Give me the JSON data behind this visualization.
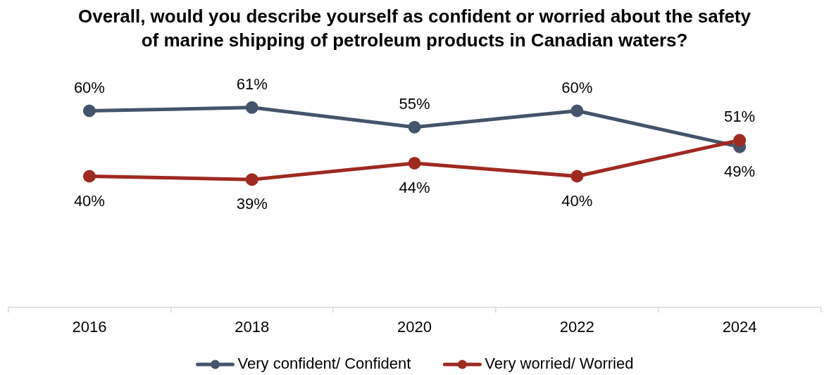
{
  "chart_data": {
    "type": "line",
    "title": "Overall, would you describe yourself as confident or worried about the safety of marine shipping of petroleum products in Canadian waters?",
    "categories": [
      "2016",
      "2018",
      "2020",
      "2022",
      "2024"
    ],
    "series": [
      {
        "name": "Very confident/ Confident",
        "color": "#44546a",
        "values": [
          60,
          61,
          55,
          60,
          49
        ],
        "value_labels": [
          "60%",
          "61%",
          "55%",
          "60%",
          "49%"
        ]
      },
      {
        "name": "Very worried/ Worried",
        "color": "#9e2a22",
        "values": [
          40,
          39,
          44,
          40,
          51
        ],
        "value_labels": [
          "40%",
          "39%",
          "44%",
          "40%",
          "51%"
        ]
      }
    ],
    "tick_labels": "x",
    "legend": "bottom",
    "marker": "circle",
    "line_style": "solid"
  }
}
